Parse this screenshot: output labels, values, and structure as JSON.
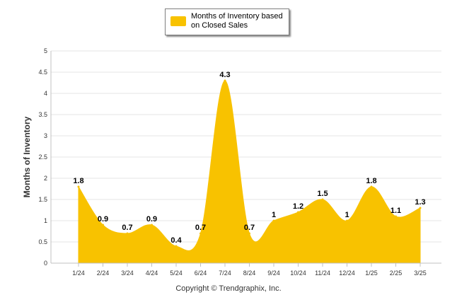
{
  "legend": {
    "label": "Months of Inventory based on Closed Sales"
  },
  "copyright": "Copyright © Trendgraphix, Inc.",
  "colors": {
    "area_fill": "#f8c200",
    "gridline": "#e6e6e6",
    "axis": "#c0c0c0"
  },
  "chart_data": {
    "type": "area",
    "ylabel": "Months of Inventory",
    "xlabel": "",
    "ylim": [
      0,
      5
    ],
    "yticks": [
      "0",
      "0.5",
      "1",
      "1.5",
      "2",
      "2.5",
      "3",
      "3.5",
      "4",
      "4.5",
      "5"
    ],
    "categories": [
      "1/24",
      "2/24",
      "3/24",
      "4/24",
      "5/24",
      "6/24",
      "7/24",
      "8/24",
      "9/24",
      "10/24",
      "11/24",
      "12/24",
      "1/25",
      "2/25",
      "3/25"
    ],
    "series": [
      {
        "name": "Months of Inventory based on Closed Sales",
        "values": [
          1.8,
          0.9,
          0.7,
          0.9,
          0.4,
          0.7,
          4.3,
          0.7,
          1,
          1.2,
          1.5,
          1,
          1.8,
          1.1,
          1.3
        ],
        "labels": [
          "1.8",
          "0.9",
          "0.7",
          "0.9",
          "0.4",
          "0.7",
          "4.3",
          "0.7",
          "1",
          "1.2",
          "1.5",
          "1",
          "1.8",
          "1.1",
          "1.3"
        ]
      }
    ],
    "grid": true,
    "legend_position": "top-center"
  }
}
